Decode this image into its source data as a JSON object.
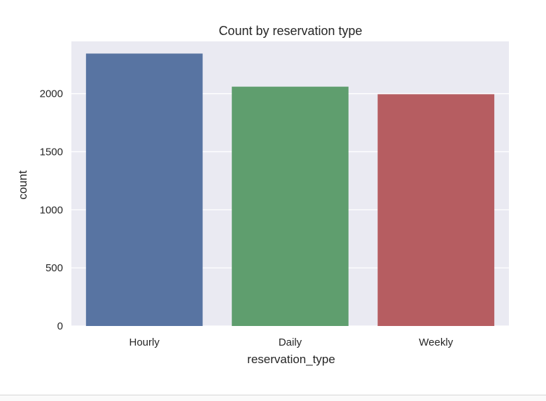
{
  "chart_data": {
    "type": "bar",
    "title": "Count by reservation type",
    "xlabel": "reservation_type",
    "ylabel": "count",
    "categories": [
      "Hourly",
      "Daily",
      "Weekly"
    ],
    "values": [
      2345,
      2060,
      1995
    ],
    "colors": [
      "#5874a2",
      "#5f9e6e",
      "#b65d61"
    ],
    "background": "#eaeaf2",
    "ylim": [
      0,
      2450
    ],
    "yticks": [
      0,
      500,
      1000,
      1500,
      2000
    ],
    "grid": true
  }
}
